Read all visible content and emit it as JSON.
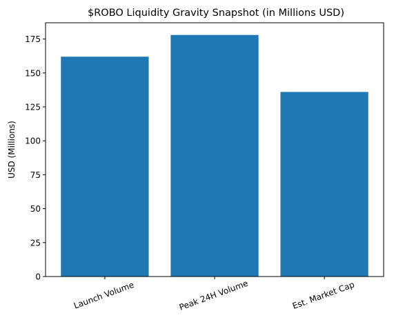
{
  "chart_data": {
    "type": "bar",
    "title": "$ROBO Liquidity Gravity Snapshot (in Millions USD)",
    "xlabel": "",
    "ylabel": "USD (Millions)",
    "categories": [
      "Launch Volume",
      "Peak 24H Volume",
      "Est. Market Cap"
    ],
    "values": [
      162,
      178,
      136
    ],
    "ylim": [
      0,
      187
    ],
    "yticks": [
      0,
      25,
      50,
      75,
      100,
      125,
      150,
      175
    ],
    "grid": false,
    "legend": "none",
    "bar_color": "#1f77b4"
  }
}
